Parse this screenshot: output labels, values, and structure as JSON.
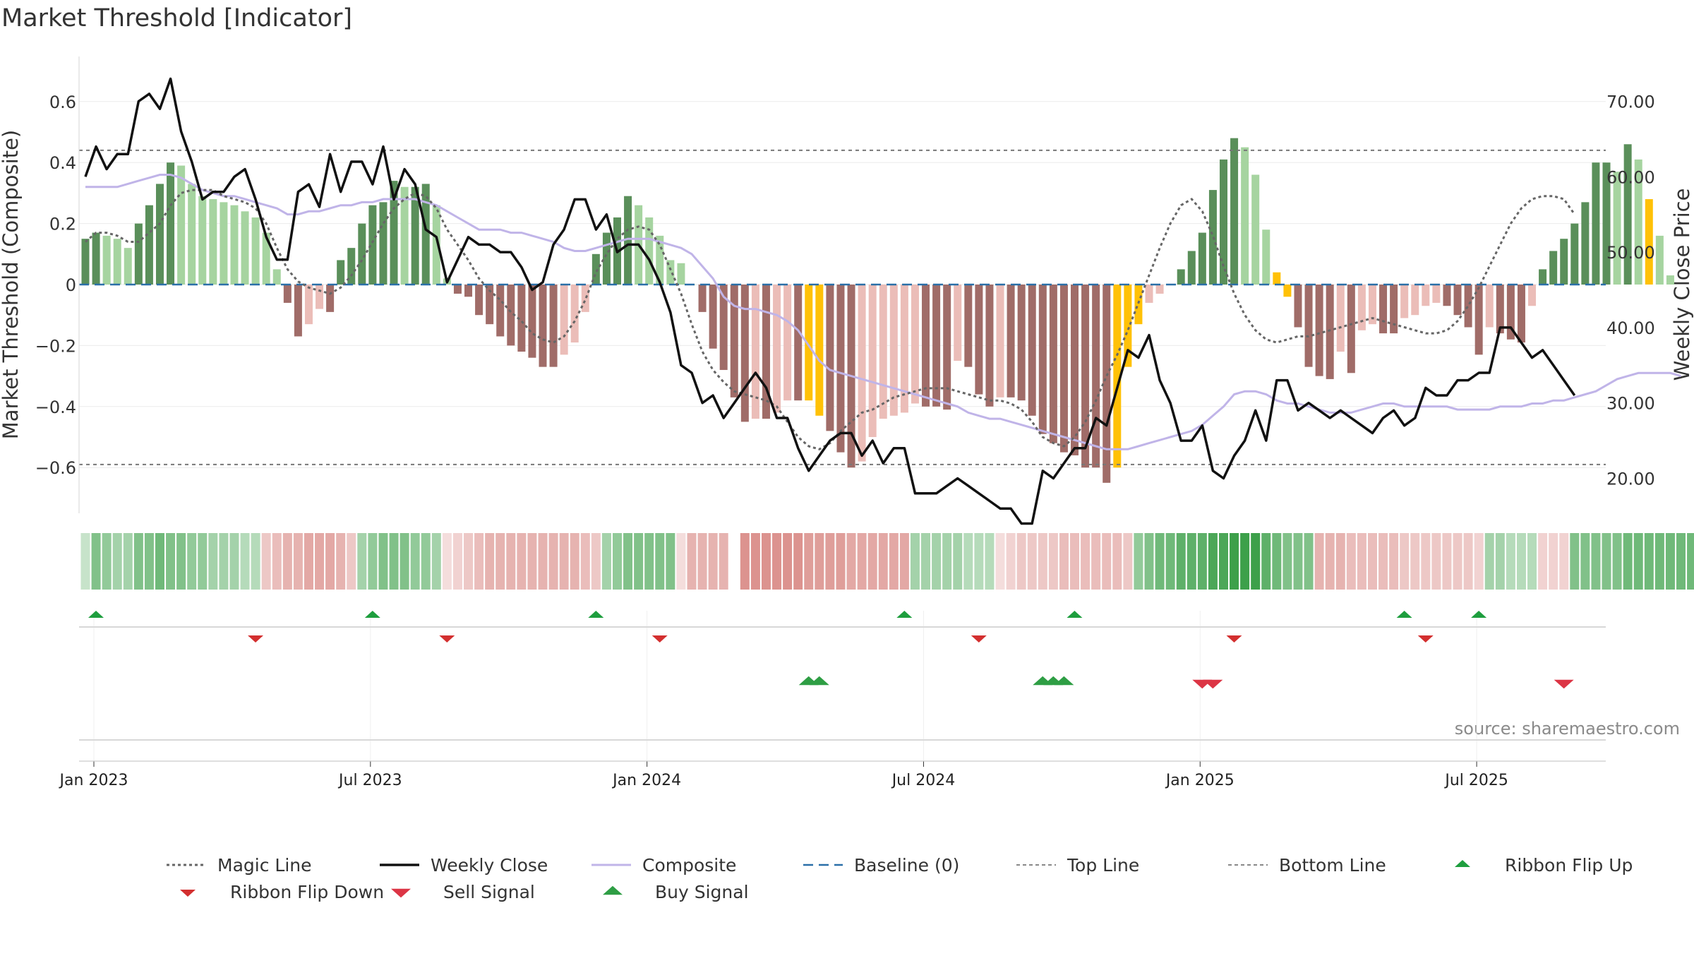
{
  "chart_data": {
    "type": "bar",
    "title": "Market Threshold [Indicator]",
    "source": "source: sharemaestro.com",
    "y_left": {
      "label": "Market Threshold (Composite)",
      "range": [
        -0.75,
        0.75
      ],
      "ticks": [
        0.6,
        0.4,
        0.2,
        0,
        -0.2,
        -0.4,
        -0.6
      ],
      "tick_labels": [
        "0.6",
        "0.4",
        "0.2",
        "0",
        "−0.2",
        "−0.4",
        "−0.6"
      ]
    },
    "y_right": {
      "label": "Weekly Close Price",
      "range": [
        15.36,
        75.95
      ],
      "ticks": [
        70,
        60,
        50,
        40,
        30,
        20
      ],
      "tick_labels": [
        "70.00",
        "60.00",
        "50.00",
        "40.00",
        "30.00",
        "20.00"
      ]
    },
    "x": {
      "ticks": [
        0,
        26,
        52,
        78,
        104,
        130
      ],
      "tick_labels": [
        "Jan 2023",
        "Jul 2023",
        "Jan 2024",
        "Jul 2024",
        "Jan 2025",
        "Jul 2025"
      ]
    },
    "levels": {
      "top_line": 0.44,
      "bottom_line": -0.59,
      "baseline": 0
    },
    "colors": {
      "pos_strong": "#5a8f5a",
      "pos_weak": "#a6d4a0",
      "neg_strong": "#a06c68",
      "neg_weak": "#ebbdb8",
      "extreme": "#ffc107",
      "close": "#111111",
      "composite": "#c0b4e8",
      "magic": "#666666",
      "baseline": "#2a6fa8",
      "threshold": "#777777",
      "buy": "#2e9e44",
      "sell": "#dc3545",
      "flip_up": "#1e9e3e",
      "flip_down": "#d32f2f",
      "ribbon_pos": "#3da04a",
      "ribbon_neg": "#d98a86"
    },
    "series": [
      {
        "name": "Composite (bars)",
        "type": "bar",
        "values": [
          0.15,
          0.17,
          0.16,
          0.15,
          0.12,
          0.2,
          0.26,
          0.33,
          0.4,
          0.39,
          0.33,
          0.29,
          0.28,
          0.27,
          0.26,
          0.24,
          0.22,
          0.17,
          0.05,
          -0.06,
          -0.17,
          -0.13,
          -0.08,
          -0.09,
          0.08,
          0.12,
          0.2,
          0.26,
          0.27,
          0.34,
          0.32,
          0.32,
          0.33,
          0.26,
          0.02,
          -0.03,
          -0.04,
          -0.1,
          -0.13,
          -0.17,
          -0.2,
          -0.22,
          -0.24,
          -0.27,
          -0.27,
          -0.23,
          -0.19,
          -0.09,
          0.1,
          0.17,
          0.22,
          0.29,
          0.26,
          0.22,
          0.16,
          0.08,
          0.07,
          0.0,
          -0.09,
          -0.21,
          -0.28,
          -0.37,
          -0.45,
          -0.44,
          -0.44,
          -0.42,
          -0.38,
          -0.38,
          -0.38,
          -0.43,
          -0.48,
          -0.55,
          -0.6,
          -0.58,
          -0.5,
          -0.44,
          -0.43,
          -0.42,
          -0.39,
          -0.4,
          -0.4,
          -0.41,
          -0.25,
          -0.27,
          -0.36,
          -0.4,
          -0.37,
          -0.37,
          -0.38,
          -0.43,
          -0.49,
          -0.52,
          -0.55,
          -0.56,
          -0.6,
          -0.6,
          -0.65,
          -0.6,
          -0.27,
          -0.13,
          -0.06,
          -0.03,
          0.0,
          0.05,
          0.11,
          0.17,
          0.31,
          0.41,
          0.48,
          0.45,
          0.36,
          0.18,
          0.04,
          -0.04,
          -0.14,
          -0.27,
          -0.3,
          -0.31,
          -0.22,
          -0.29,
          -0.15,
          -0.13,
          -0.16,
          -0.16,
          -0.11,
          -0.1,
          -0.07,
          -0.06,
          -0.07,
          -0.1,
          -0.14,
          -0.23,
          -0.14,
          -0.16,
          -0.18,
          -0.19,
          -0.07,
          0.05,
          0.11,
          0.15,
          0.2,
          0.27,
          0.4,
          0.4,
          0.37,
          0.46,
          0.41,
          0.28,
          0.16,
          0.03
        ],
        "extreme_weeks": [
          68,
          69,
          97,
          98,
          99,
          112,
          113,
          147
        ]
      },
      {
        "name": "Magic Line",
        "type": "line",
        "values": [
          0.14,
          0.17,
          0.17,
          0.16,
          0.14,
          0.14,
          0.17,
          0.2,
          0.26,
          0.3,
          0.31,
          0.31,
          0.31,
          0.29,
          0.28,
          0.27,
          0.25,
          0.2,
          0.12,
          0.05,
          0.01,
          -0.01,
          -0.02,
          -0.03,
          -0.01,
          0.03,
          0.08,
          0.14,
          0.2,
          0.25,
          0.28,
          0.3,
          0.29,
          0.25,
          0.18,
          0.13,
          0.08,
          0.02,
          -0.02,
          -0.05,
          -0.09,
          -0.12,
          -0.16,
          -0.18,
          -0.19,
          -0.17,
          -0.12,
          -0.05,
          0.04,
          0.1,
          0.15,
          0.18,
          0.19,
          0.18,
          0.13,
          0.05,
          -0.03,
          -0.13,
          -0.22,
          -0.28,
          -0.32,
          -0.35,
          -0.36,
          -0.37,
          -0.38,
          -0.4,
          -0.45,
          -0.5,
          -0.53,
          -0.54,
          -0.52,
          -0.48,
          -0.45,
          -0.42,
          -0.41,
          -0.39,
          -0.37,
          -0.36,
          -0.35,
          -0.34,
          -0.34,
          -0.34,
          -0.35,
          -0.36,
          -0.37,
          -0.38,
          -0.38,
          -0.39,
          -0.41,
          -0.45,
          -0.5,
          -0.52,
          -0.53,
          -0.5,
          -0.45,
          -0.38,
          -0.3,
          -0.23,
          -0.15,
          -0.06,
          0.03,
          0.12,
          0.2,
          0.26,
          0.28,
          0.24,
          0.16,
          0.06,
          -0.03,
          -0.1,
          -0.15,
          -0.18,
          -0.19,
          -0.18,
          -0.17,
          -0.17,
          -0.16,
          -0.15,
          -0.14,
          -0.13,
          -0.12,
          -0.11,
          -0.12,
          -0.13,
          -0.14,
          -0.15,
          -0.16,
          -0.16,
          -0.15,
          -0.12,
          -0.07,
          -0.01,
          0.06,
          0.13,
          0.2,
          0.25,
          0.28,
          0.29,
          0.29,
          0.28,
          0.23
        ]
      },
      {
        "name": "Composite",
        "type": "line",
        "values": [
          0.32,
          0.32,
          0.32,
          0.32,
          0.33,
          0.34,
          0.35,
          0.36,
          0.36,
          0.35,
          0.33,
          0.31,
          0.3,
          0.29,
          0.29,
          0.28,
          0.27,
          0.26,
          0.25,
          0.23,
          0.23,
          0.24,
          0.24,
          0.25,
          0.26,
          0.26,
          0.27,
          0.27,
          0.28,
          0.28,
          0.28,
          0.28,
          0.27,
          0.26,
          0.24,
          0.22,
          0.2,
          0.18,
          0.18,
          0.18,
          0.17,
          0.17,
          0.16,
          0.15,
          0.14,
          0.12,
          0.11,
          0.11,
          0.12,
          0.13,
          0.14,
          0.15,
          0.15,
          0.15,
          0.14,
          0.13,
          0.12,
          0.1,
          0.06,
          0.02,
          -0.04,
          -0.07,
          -0.08,
          -0.08,
          -0.09,
          -0.1,
          -0.12,
          -0.15,
          -0.2,
          -0.25,
          -0.28,
          -0.29,
          -0.3,
          -0.31,
          -0.32,
          -0.33,
          -0.34,
          -0.35,
          -0.36,
          -0.37,
          -0.38,
          -0.39,
          -0.4,
          -0.42,
          -0.43,
          -0.44,
          -0.44,
          -0.45,
          -0.46,
          -0.47,
          -0.48,
          -0.49,
          -0.5,
          -0.51,
          -0.52,
          -0.53,
          -0.54,
          -0.54,
          -0.54,
          -0.53,
          -0.52,
          -0.51,
          -0.5,
          -0.49,
          -0.48,
          -0.46,
          -0.43,
          -0.4,
          -0.36,
          -0.35,
          -0.35,
          -0.36,
          -0.38,
          -0.39,
          -0.39,
          -0.4,
          -0.41,
          -0.42,
          -0.42,
          -0.42,
          -0.41,
          -0.4,
          -0.39,
          -0.39,
          -0.4,
          -0.4,
          -0.4,
          -0.4,
          -0.4,
          -0.41,
          -0.41,
          -0.41,
          -0.41,
          -0.4,
          -0.4,
          -0.4,
          -0.39,
          -0.39,
          -0.38,
          -0.38,
          -0.37,
          -0.36,
          -0.35,
          -0.33,
          -0.31,
          -0.3,
          -0.29,
          -0.29,
          -0.29,
          -0.29,
          -0.3
        ]
      },
      {
        "name": "Weekly Close",
        "type": "line",
        "axis": "right",
        "values": [
          60,
          64,
          61,
          63,
          63,
          70,
          71,
          69,
          73,
          66,
          62,
          57,
          58,
          58,
          60,
          61,
          57,
          52,
          49,
          49,
          58,
          59,
          56,
          63,
          58,
          62,
          62,
          59,
          64,
          57,
          61,
          59,
          53,
          52,
          46,
          49,
          52,
          51,
          51,
          50,
          50,
          48,
          45,
          46,
          51,
          53,
          57,
          57,
          53,
          55,
          50,
          51,
          51,
          49,
          46,
          42,
          35,
          34,
          30,
          31,
          28,
          30,
          32,
          34,
          32,
          28,
          28,
          24,
          21,
          23,
          25,
          26,
          26,
          23,
          25,
          22,
          24,
          24,
          18,
          18,
          18,
          19,
          20,
          19,
          18,
          17,
          16,
          16,
          14,
          14,
          21,
          20,
          22,
          24,
          24,
          28,
          27,
          32,
          37,
          36,
          39,
          33,
          30,
          25,
          25,
          27,
          21,
          20,
          23,
          25,
          29,
          25,
          33,
          33,
          29,
          30,
          29,
          28,
          29,
          28,
          27,
          26,
          28,
          29,
          27,
          28,
          32,
          31,
          31,
          33,
          33,
          34,
          34,
          40,
          40,
          38,
          36,
          37,
          35,
          33,
          31
        ]
      }
    ],
    "ribbon": {
      "values": [
        0.1,
        0.5,
        0.4,
        0.3,
        0.3,
        0.5,
        0.5,
        0.6,
        0.5,
        0.5,
        0.4,
        0.4,
        0.3,
        0.3,
        0.3,
        0.2,
        0.2,
        -0.3,
        -0.4,
        -0.5,
        -0.5,
        -0.6,
        -0.6,
        -0.6,
        -0.5,
        -0.3,
        0.3,
        0.4,
        0.5,
        0.5,
        0.5,
        0.4,
        0.4,
        0.3,
        -0.1,
        -0.2,
        -0.3,
        -0.4,
        -0.5,
        -0.5,
        -0.5,
        -0.5,
        -0.5,
        -0.5,
        -0.5,
        -0.5,
        -0.5,
        -0.4,
        -0.3,
        0.3,
        0.4,
        0.5,
        0.5,
        0.5,
        0.5,
        0.5,
        -0.1,
        -0.5,
        -0.5,
        -0.5,
        -0.5,
        null,
        -0.8,
        -0.8,
        -0.8,
        -0.8,
        -0.8,
        -0.8,
        -0.7,
        -0.7,
        -0.7,
        -0.7,
        -0.6,
        -0.6,
        -0.6,
        -0.6,
        -0.6,
        -0.6,
        0.3,
        0.3,
        0.3,
        0.3,
        0.3,
        0.2,
        0.2,
        0.2,
        -0.1,
        -0.2,
        -0.3,
        -0.3,
        -0.3,
        -0.3,
        -0.4,
        -0.4,
        -0.4,
        -0.4,
        -0.4,
        -0.4,
        -0.3,
        0.4,
        0.5,
        0.6,
        0.6,
        0.7,
        0.7,
        0.7,
        0.8,
        0.8,
        0.9,
        0.9,
        0.9,
        0.7,
        0.6,
        0.5,
        0.5,
        0.5,
        -0.5,
        -0.5,
        -0.5,
        -0.4,
        -0.4,
        -0.4,
        -0.4,
        -0.4,
        -0.3,
        -0.3,
        -0.3,
        -0.3,
        -0.3,
        -0.3,
        -0.3,
        -0.2,
        0.3,
        0.3,
        0.2,
        0.2,
        0.2,
        -0.2,
        -0.2,
        -0.2,
        0.5,
        0.5,
        0.5,
        0.5,
        0.5,
        0.6,
        0.6,
        0.6,
        0.6,
        0.6,
        0.6,
        0.6,
        0.4
      ]
    },
    "markers": {
      "ribbon_flip_up": [
        0,
        26,
        47,
        76,
        92,
        123,
        130
      ],
      "ribbon_flip_down": [
        15,
        33,
        53,
        83,
        107,
        125
      ],
      "buy_signal": [
        67,
        68,
        89,
        90,
        91
      ],
      "sell_signal": [
        104,
        105,
        138
      ]
    },
    "legend": [
      {
        "label": "Magic Line",
        "kind": "dotted"
      },
      {
        "label": "Weekly Close",
        "kind": "solid"
      },
      {
        "label": "Composite",
        "kind": "composite"
      },
      {
        "label": "Baseline (0)",
        "kind": "dashed"
      },
      {
        "label": "Top Line",
        "kind": "thin-dashed"
      },
      {
        "label": "Bottom Line",
        "kind": "thin-dashed"
      },
      {
        "label": "Ribbon Flip Up",
        "kind": "tri-up"
      },
      {
        "label": "Ribbon Flip Down",
        "kind": "tri-down"
      },
      {
        "label": "Sell Signal",
        "kind": "tri-down-sell"
      },
      {
        "label": "Buy Signal",
        "kind": "tri-up-buy"
      }
    ]
  }
}
